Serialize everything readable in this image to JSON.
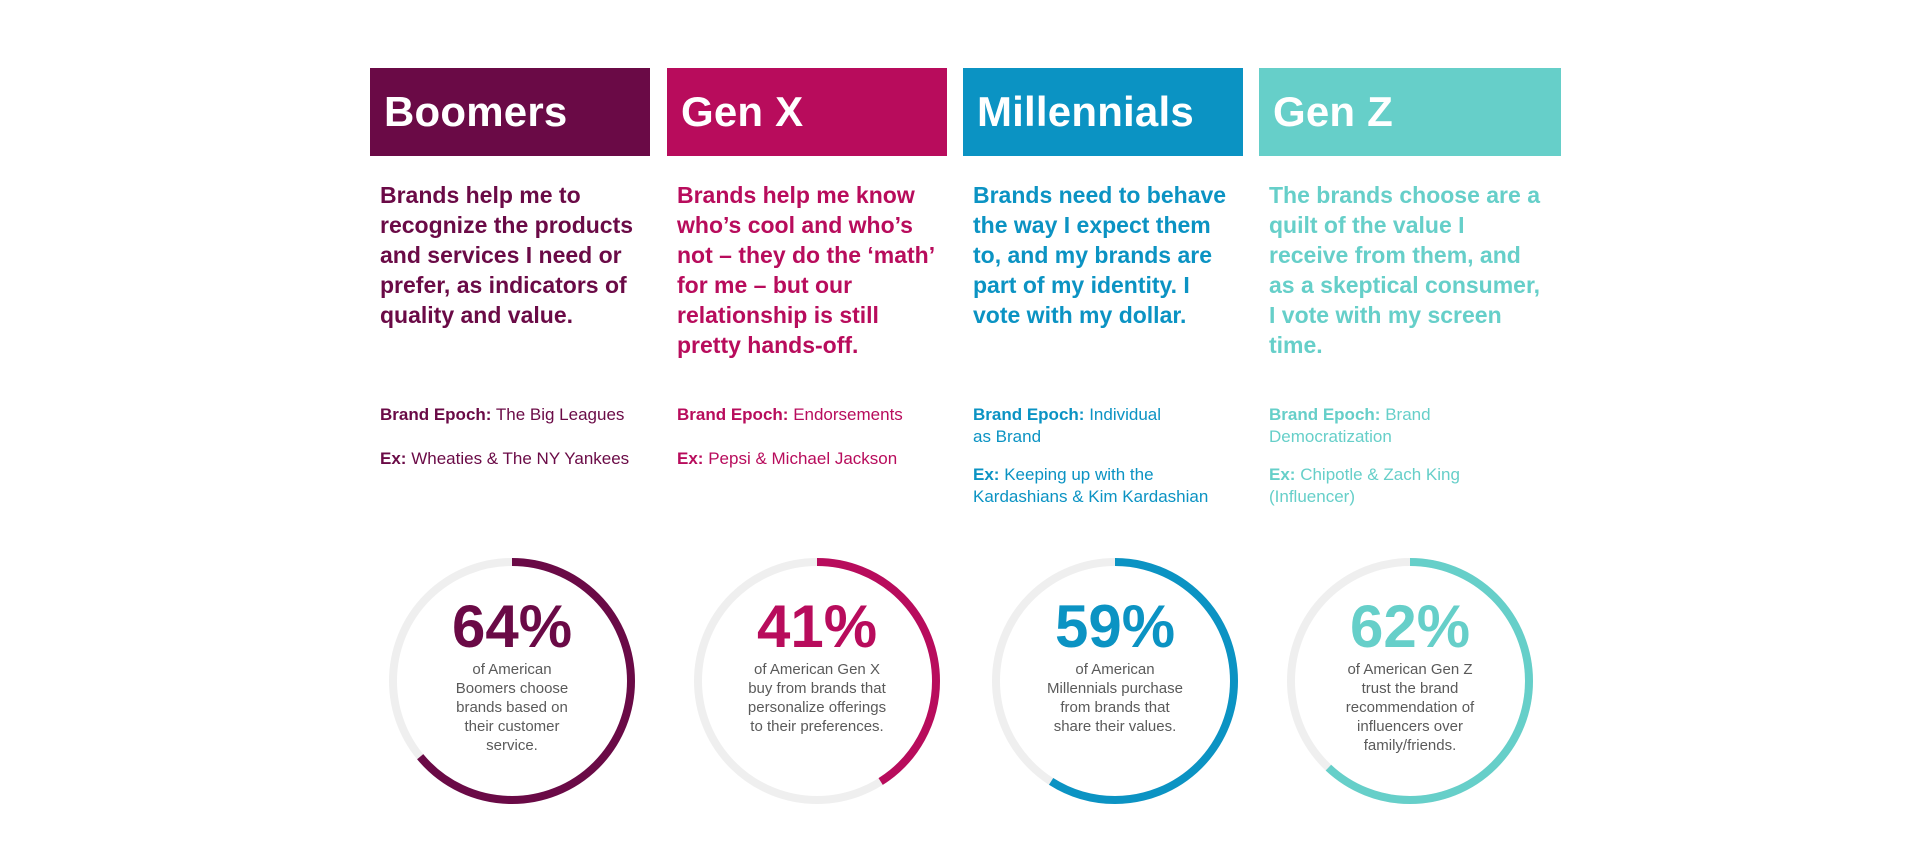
{
  "colors": {
    "boomers": "#6a0a46",
    "genx": "#b80c5c",
    "millennials": "#0b93c3",
    "genz": "#66cfc9",
    "ring_track": "#efefef"
  },
  "columns": [
    {
      "title": "Boomers",
      "statement": "Brands help me to recognize the products and services I need or prefer, as indicators of quality and value.",
      "epoch_label": "Brand Epoch:",
      "epoch_value": "The Big Leagues",
      "example_label": "Ex:",
      "example_value": "Wheaties & The NY Yankees",
      "stat": {
        "value": "64%",
        "fraction": 0.64,
        "description": "of American Boomers choose brands based on their customer service."
      }
    },
    {
      "title": "Gen X",
      "statement": "Brands help me know who’s cool and who’s not – they do the ‘math’ for me – but our relationship is still pretty hands-off.",
      "epoch_label": "Brand Epoch:",
      "epoch_value": "Endorsements",
      "example_label": "Ex:",
      "example_value": "Pepsi & Michael Jackson",
      "stat": {
        "value": "41%",
        "fraction": 0.41,
        "description": "of American Gen X buy from brands that personalize offerings to their preferences."
      }
    },
    {
      "title": "Millennials",
      "statement": "Brands need to behave the way I expect them to, and my brands are part of my identity. I vote with my dollar.",
      "epoch_label": "Brand Epoch:",
      "epoch_value": "Individual as Brand",
      "example_label": "Ex:",
      "example_value": "Keeping up with the Kardashians & Kim Kardashian",
      "stat": {
        "value": "59%",
        "fraction": 0.59,
        "description": "of American Millennials purchase from brands that share their values."
      }
    },
    {
      "title": "Gen Z",
      "statement": "The brands choose are a quilt of the value I receive from them, and as a skeptical consumer, I vote with my screen time.",
      "epoch_label": "Brand Epoch:",
      "epoch_value": "Brand Democratization",
      "example_label": "Ex:",
      "example_value": "Chipotle &  Zach King (Influencer)",
      "stat": {
        "value": "62%",
        "fraction": 0.62,
        "description": "of American Gen Z trust the brand recommendation of influencers over family/friends."
      }
    }
  ]
}
